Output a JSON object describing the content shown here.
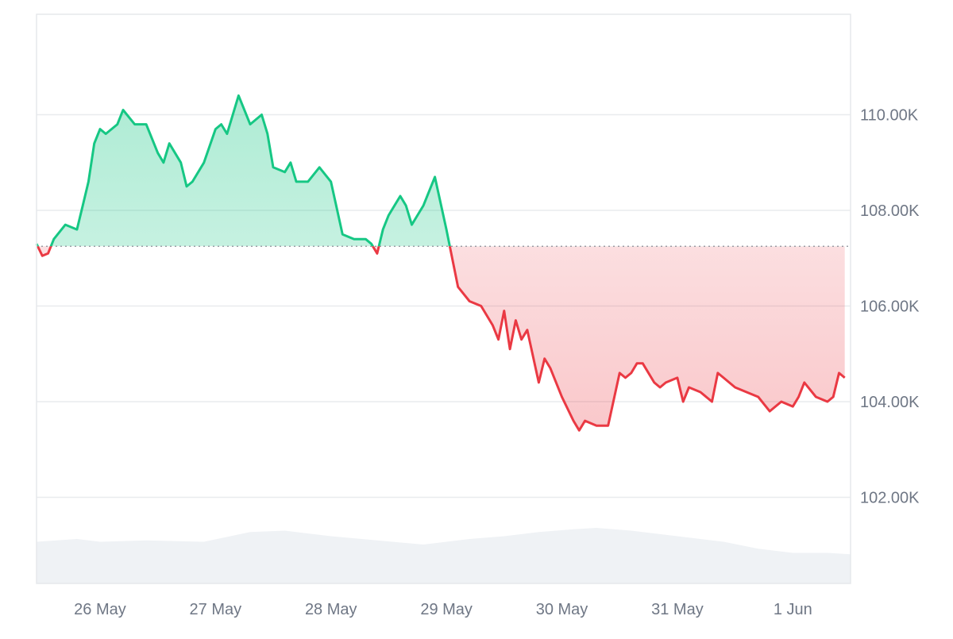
{
  "chart_data": {
    "type": "line",
    "baseline_style": "green above / red below baseline, dotted baseline",
    "baseline": 107.25,
    "ylim": [
      100.2,
      112.1
    ],
    "y_ticks": [
      102,
      104,
      106,
      108,
      110
    ],
    "y_tick_labels": [
      "102.00K",
      "104.00K",
      "106.00K",
      "108.00K",
      "110.00K"
    ],
    "xlim": [
      -0.55,
      6.5
    ],
    "x_ticks": [
      0,
      1,
      2,
      3,
      4,
      5,
      6
    ],
    "x_tick_labels": [
      "26 May",
      "27 May",
      "28 May",
      "29 May",
      "30 May",
      "31 May",
      "1 Jun"
    ],
    "grid": true,
    "legend": "none",
    "colors": {
      "up": "#16c784",
      "down": "#ea3943",
      "volume": "#eff2f5",
      "grid": "#e9ebee",
      "axis_text": "#6f7785"
    },
    "series": [
      {
        "x": [
          -0.55,
          -0.5,
          -0.45,
          -0.4,
          -0.3,
          -0.2,
          -0.15,
          -0.1,
          -0.05,
          0.0,
          0.05,
          0.15,
          0.2,
          0.3,
          0.4,
          0.5,
          0.55,
          0.6,
          0.7,
          0.75,
          0.8,
          0.9,
          1.0,
          1.05,
          1.1,
          1.2,
          1.3,
          1.4,
          1.45,
          1.5,
          1.6,
          1.65,
          1.7,
          1.8,
          1.9,
          2.0,
          2.1,
          2.2,
          2.3,
          2.35,
          2.4,
          2.45,
          2.5,
          2.6,
          2.65,
          2.7,
          2.8,
          2.9,
          3.0,
          3.1,
          3.2,
          3.3,
          3.4,
          3.45,
          3.5,
          3.55,
          3.6,
          3.65,
          3.7,
          3.8,
          3.85,
          3.9,
          4.0,
          4.1,
          4.15,
          4.2,
          4.3,
          4.4,
          4.5,
          4.55,
          4.6,
          4.65,
          4.7,
          4.8,
          4.85,
          4.9,
          5.0,
          5.05,
          5.1,
          5.2,
          5.3,
          5.35,
          5.4,
          5.5,
          5.6,
          5.7,
          5.8,
          5.9,
          6.0,
          6.05,
          6.1,
          6.2,
          6.3,
          6.35,
          6.4,
          6.45
        ],
        "y": [
          107.3,
          107.05,
          107.1,
          107.4,
          107.7,
          107.6,
          108.1,
          108.6,
          109.4,
          109.7,
          109.6,
          109.8,
          110.1,
          109.8,
          109.8,
          109.2,
          109.0,
          109.4,
          109.0,
          108.5,
          108.6,
          109.0,
          109.7,
          109.8,
          109.6,
          110.4,
          109.8,
          110.0,
          109.6,
          108.9,
          108.8,
          109.0,
          108.6,
          108.6,
          108.9,
          108.6,
          107.5,
          107.4,
          107.4,
          107.3,
          107.1,
          107.6,
          107.9,
          108.3,
          108.1,
          107.7,
          108.1,
          108.7,
          107.6,
          106.4,
          106.1,
          106.0,
          105.6,
          105.3,
          105.9,
          105.1,
          105.7,
          105.3,
          105.5,
          104.4,
          104.9,
          104.7,
          104.1,
          103.6,
          103.4,
          103.6,
          103.5,
          103.5,
          104.6,
          104.5,
          104.6,
          104.8,
          104.8,
          104.4,
          104.3,
          104.4,
          104.5,
          104.0,
          104.3,
          104.2,
          104.0,
          104.6,
          104.5,
          104.3,
          104.2,
          104.1,
          103.8,
          104.0,
          103.9,
          104.1,
          104.4,
          104.1,
          104.0,
          104.1,
          104.6,
          104.5
        ]
      }
    ],
    "volume_x": [
      -0.55,
      -0.2,
      0.0,
      0.4,
      0.9,
      1.3,
      1.6,
      2.0,
      2.4,
      2.8,
      3.2,
      3.5,
      3.8,
      4.1,
      4.3,
      4.6,
      4.8,
      5.1,
      5.4,
      5.7,
      6.0,
      6.3,
      6.5
    ],
    "volume": [
      0.3,
      0.32,
      0.3,
      0.31,
      0.3,
      0.37,
      0.38,
      0.34,
      0.31,
      0.28,
      0.32,
      0.34,
      0.37,
      0.39,
      0.4,
      0.38,
      0.36,
      0.33,
      0.3,
      0.25,
      0.22,
      0.22,
      0.21
    ]
  }
}
